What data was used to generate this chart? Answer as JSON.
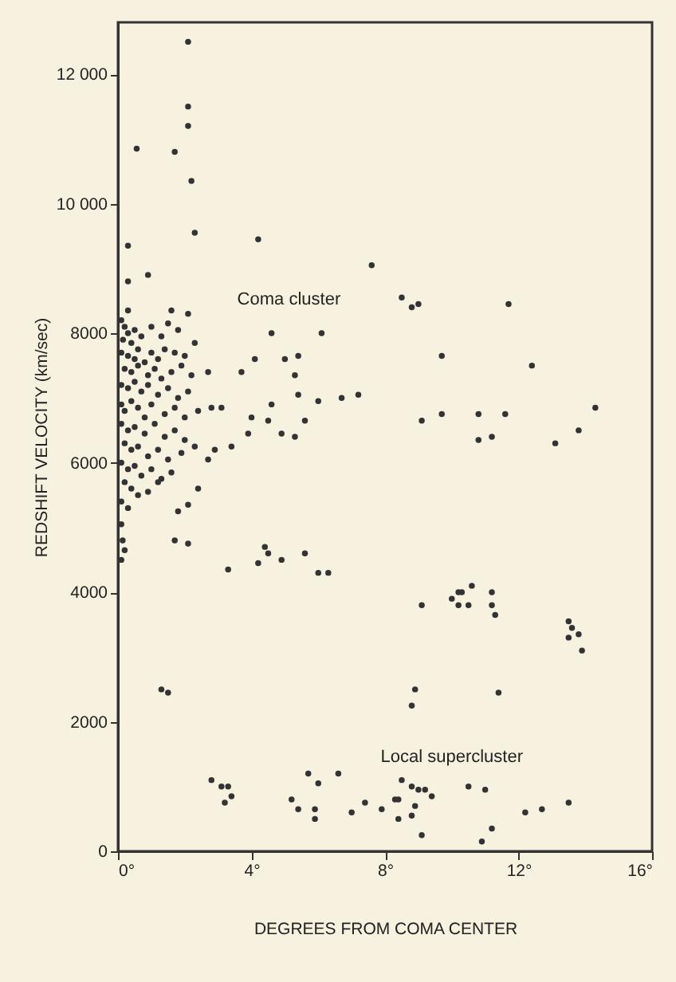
{
  "chart_data": {
    "type": "scatter",
    "xlabel": "DEGREES FROM COMA CENTER",
    "ylabel": "REDSHIFT VELOCITY (km/sec)",
    "xlim": [
      0,
      16
    ],
    "xticks": [
      {
        "value": 0,
        "label": "0°"
      },
      {
        "value": 4,
        "label": "4°"
      },
      {
        "value": 8,
        "label": "8°"
      },
      {
        "value": 12,
        "label": "12°"
      },
      {
        "value": 16,
        "label": "16°"
      }
    ],
    "ylim": [
      0,
      12800
    ],
    "yticks": [
      0,
      2000,
      4000,
      6000,
      8000,
      {
        "value": 10000,
        "label": "10 000"
      },
      {
        "value": 12000,
        "label": "12 000"
      }
    ],
    "grid": false,
    "marker": "circle",
    "annotations": [
      "Coma cluster",
      "Local supercluster"
    ],
    "series": [
      {
        "color": "#333333",
        "x": [
          2.1,
          2.1,
          2.1,
          0.56,
          1.7,
          2.2,
          2.3,
          4.2,
          0.3,
          0.3,
          0.9,
          0.3,
          1.6,
          2.1,
          4.6,
          6.1,
          2.3,
          2.7,
          3.7,
          4.1,
          5.0,
          5.3,
          5.4,
          2.8,
          3.1,
          4.6,
          6.0,
          5.4,
          4.0,
          4.5,
          3.9,
          4.9,
          5.3,
          5.6,
          3.4,
          2.9,
          2.7,
          7.6,
          8.5,
          8.8,
          9.0,
          11.7,
          9.7,
          12.4,
          6.7,
          7.2,
          9.1,
          9.7,
          10.8,
          11.6,
          14.3,
          13.8,
          13.1,
          10.8,
          11.2,
          2.4,
          1.8,
          2.1,
          1.7,
          2.1,
          3.3,
          4.4,
          4.5,
          4.2,
          4.9,
          5.6,
          6.0,
          6.3,
          1.3,
          1.5,
          2.8,
          3.1,
          3.3,
          3.4,
          3.2,
          5.2,
          5.4,
          5.9,
          5.9,
          5.7,
          6.0,
          6.6,
          0.1,
          0.14,
          0.1,
          0.2,
          9.1,
          10.0,
          10.2,
          10.3,
          10.6,
          10.2,
          10.5,
          11.2,
          11.2,
          11.3,
          13.5,
          13.6,
          13.8,
          13.5,
          13.9,
          8.9,
          8.8,
          11.4,
          7.0,
          7.4,
          7.9,
          8.3,
          8.4,
          8.4,
          8.8,
          8.9,
          8.5,
          8.8,
          9.0,
          9.2,
          9.4,
          9.1,
          10.5,
          11.0,
          11.2,
          10.9,
          12.2,
          12.7,
          13.5,
          0.1,
          0.2,
          0.3,
          0.5,
          0.15,
          0.4,
          0.7,
          1.0,
          1.3,
          1.5,
          1.8,
          0.1,
          0.3,
          0.5,
          0.6,
          0.8,
          1.0,
          1.2,
          1.4,
          1.7,
          2.0,
          0.2,
          0.4,
          0.6,
          0.9,
          1.1,
          1.3,
          1.6,
          1.9,
          2.2,
          0.1,
          0.3,
          0.5,
          0.7,
          0.9,
          1.2,
          1.5,
          1.8,
          2.1,
          0.1,
          0.2,
          0.4,
          0.6,
          0.8,
          1.0,
          1.4,
          1.7,
          2.0,
          2.4,
          0.1,
          0.3,
          0.5,
          0.8,
          1.1,
          1.4,
          1.7,
          2.0,
          0.2,
          0.4,
          0.6,
          0.9,
          1.2,
          1.5,
          1.9,
          2.3,
          0.1,
          0.3,
          0.5,
          0.7,
          1.0,
          1.3,
          1.6,
          0.2,
          0.4,
          0.6,
          0.9,
          0.1,
          0.3,
          1.2
        ],
        "values": [
          12500,
          11500,
          11200,
          10850,
          10800,
          10350,
          9550,
          9450,
          9350,
          8800,
          8900,
          8350,
          8350,
          8300,
          8000,
          8000,
          7850,
          7400,
          7400,
          7600,
          7600,
          7350,
          7650,
          6850,
          6850,
          6900,
          6950,
          7050,
          6700,
          6650,
          6450,
          6450,
          6400,
          6650,
          6250,
          6200,
          6050,
          9050,
          8550,
          8400,
          8450,
          8450,
          7650,
          7500,
          7000,
          7050,
          6650,
          6750,
          6750,
          6750,
          6850,
          6500,
          6300,
          6350,
          6400,
          5600,
          5250,
          5350,
          4800,
          4750,
          4350,
          4700,
          4600,
          4450,
          4500,
          4600,
          4300,
          4300,
          2500,
          2450,
          1100,
          1000,
          1000,
          850,
          750,
          800,
          650,
          650,
          500,
          1200,
          1050,
          1200,
          5050,
          4800,
          4500,
          4650,
          3800,
          3900,
          4000,
          4000,
          4100,
          3800,
          3800,
          4000,
          3800,
          3650,
          3550,
          3450,
          3350,
          3300,
          3100,
          2500,
          2250,
          2450,
          600,
          750,
          650,
          800,
          800,
          500,
          550,
          700,
          1100,
          1000,
          950,
          950,
          850,
          250,
          1000,
          950,
          350,
          150,
          600,
          650,
          750,
          8200,
          8100,
          8000,
          8050,
          7900,
          7850,
          7950,
          8100,
          7950,
          8150,
          8050,
          7700,
          7650,
          7600,
          7750,
          7550,
          7700,
          7600,
          7750,
          7700,
          7650,
          7450,
          7400,
          7500,
          7350,
          7450,
          7300,
          7400,
          7500,
          7350,
          7200,
          7150,
          7250,
          7100,
          7200,
          7050,
          7150,
          7000,
          7100,
          6900,
          6800,
          6950,
          6850,
          6700,
          6900,
          6750,
          6850,
          6700,
          6800,
          6600,
          6500,
          6550,
          6450,
          6600,
          6400,
          6500,
          6350,
          6300,
          6200,
          6250,
          6100,
          6200,
          6050,
          6150,
          6250,
          6000,
          5900,
          5950,
          5800,
          5900,
          5750,
          5850,
          5700,
          5600,
          5500,
          5550,
          5400,
          5300,
          5700
        ]
      }
    ]
  }
}
